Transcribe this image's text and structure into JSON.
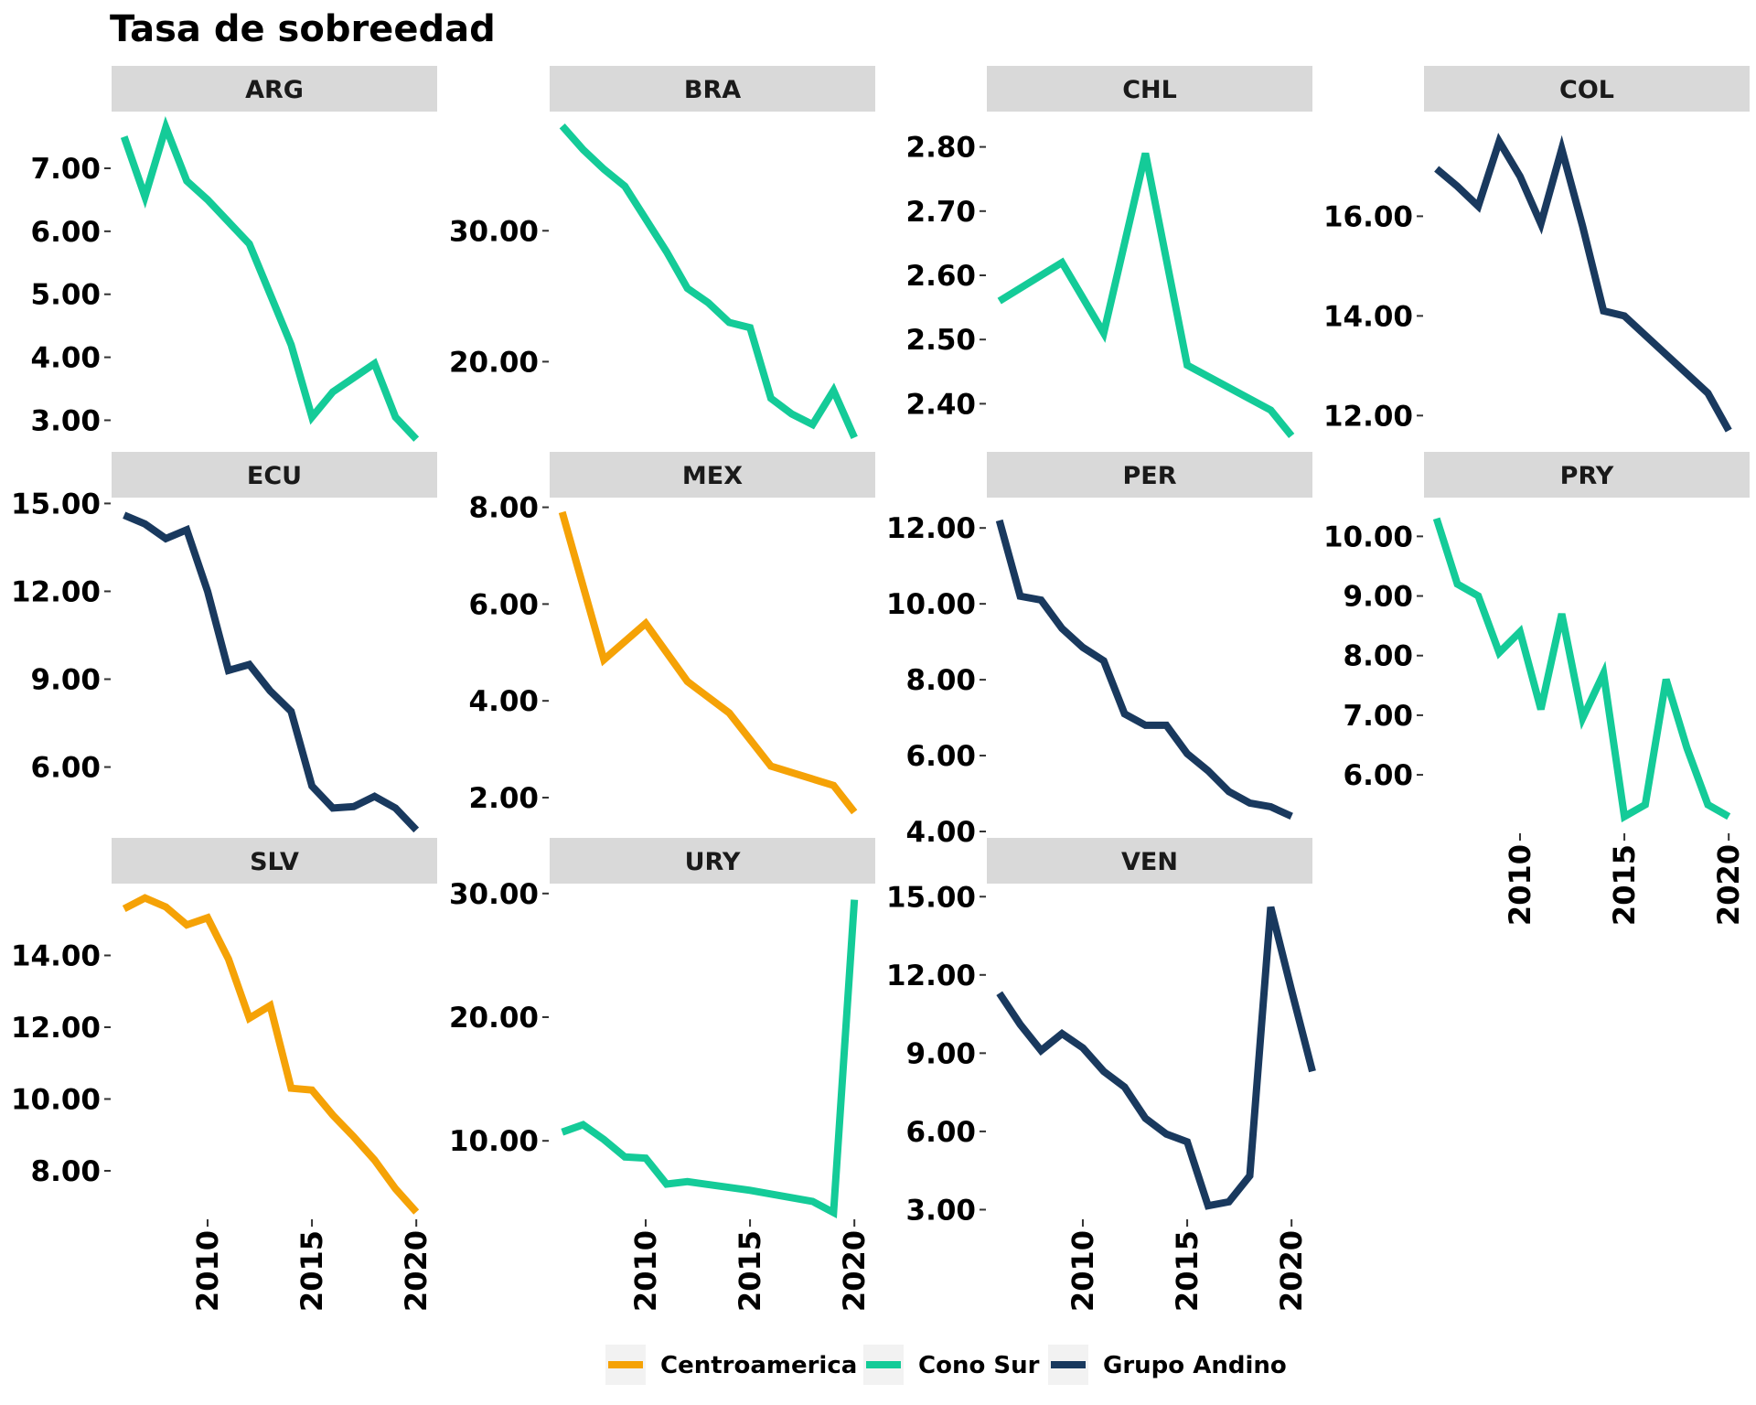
{
  "chart_data": {
    "type": "line",
    "title": "Tasa de sobreedad",
    "x": [
      2006,
      2007,
      2008,
      2009,
      2010,
      2011,
      2012,
      2013,
      2014,
      2015,
      2016,
      2017,
      2018,
      2019,
      2020,
      2021
    ],
    "xticks": [
      "2010",
      "2015",
      "2020"
    ],
    "legend": {
      "position": "bottom",
      "entries": [
        {
          "label": "Centroamerica",
          "color": "#F5A206"
        },
        {
          "label": "Cono Sur",
          "color": "#14CB98"
        },
        {
          "label": "Grupo Andino",
          "color": "#19395E"
        }
      ]
    },
    "panels": [
      {
        "label": "ARG",
        "group": "Cono Sur",
        "ylim": [
          2.6,
          7.9
        ],
        "yticks": [
          "7.00",
          "6.00",
          "5.00",
          "4.00",
          "3.00"
        ],
        "show_x_axis": false,
        "points": [
          [
            2006,
            7.5
          ],
          [
            2007,
            6.55
          ],
          [
            2008,
            7.65
          ],
          [
            2009,
            6.8
          ],
          [
            2010,
            6.5
          ],
          [
            2012,
            5.8
          ],
          [
            2014,
            4.2
          ],
          [
            2015,
            3.05
          ],
          [
            2016,
            3.45
          ],
          [
            2018,
            3.9
          ],
          [
            2019,
            3.05
          ],
          [
            2020,
            2.7
          ]
        ]
      },
      {
        "label": "BRA",
        "group": "Cono Sur",
        "ylim": [
          13.6,
          39.1
        ],
        "yticks": [
          "30.00",
          "20.00"
        ],
        "show_x_axis": false,
        "points": [
          [
            2006,
            38.0
          ],
          [
            2007,
            36.2
          ],
          [
            2008,
            34.7
          ],
          [
            2009,
            33.4
          ],
          [
            2010,
            30.9
          ],
          [
            2011,
            28.4
          ],
          [
            2012,
            25.6
          ],
          [
            2013,
            24.5
          ],
          [
            2014,
            23.0
          ],
          [
            2015,
            22.6
          ],
          [
            2016,
            17.2
          ],
          [
            2017,
            16.0
          ],
          [
            2018,
            15.2
          ],
          [
            2019,
            17.8
          ],
          [
            2020,
            14.2
          ]
        ]
      },
      {
        "label": "CHL",
        "group": "Cono Sur",
        "ylim": [
          2.335,
          2.855
        ],
        "yticks": [
          "2.80",
          "2.70",
          "2.60",
          "2.50",
          "2.40"
        ],
        "show_x_axis": false,
        "points": [
          [
            2006,
            2.56
          ],
          [
            2009,
            2.62
          ],
          [
            2011,
            2.51
          ],
          [
            2013,
            2.79
          ],
          [
            2015,
            2.46
          ],
          [
            2019,
            2.39
          ],
          [
            2020,
            2.35
          ]
        ]
      },
      {
        "label": "COL",
        "group": "Grupo Andino",
        "ylim": [
          11.4,
          18.1
        ],
        "yticks": [
          "16.00",
          "14.00",
          "12.00"
        ],
        "show_x_axis": false,
        "points": [
          [
            2006,
            16.95
          ],
          [
            2007,
            16.6
          ],
          [
            2008,
            16.2
          ],
          [
            2009,
            17.5
          ],
          [
            2010,
            16.8
          ],
          [
            2011,
            15.85
          ],
          [
            2012,
            17.35
          ],
          [
            2013,
            15.8
          ],
          [
            2014,
            14.1
          ],
          [
            2015,
            14.0
          ],
          [
            2019,
            12.45
          ],
          [
            2020,
            11.7
          ]
        ]
      },
      {
        "label": "ECU",
        "group": "Grupo Andino",
        "ylim": [
          3.8,
          15.2
        ],
        "yticks": [
          "15.00",
          "12.00",
          "9.00",
          "6.00"
        ],
        "show_x_axis": false,
        "points": [
          [
            2006,
            14.6
          ],
          [
            2007,
            14.3
          ],
          [
            2008,
            13.8
          ],
          [
            2009,
            14.1
          ],
          [
            2010,
            12.0
          ],
          [
            2011,
            9.3
          ],
          [
            2012,
            9.5
          ],
          [
            2013,
            8.6
          ],
          [
            2014,
            7.9
          ],
          [
            2015,
            5.35
          ],
          [
            2016,
            4.6
          ],
          [
            2017,
            4.65
          ],
          [
            2018,
            5.0
          ],
          [
            2019,
            4.6
          ],
          [
            2020,
            3.85
          ]
        ]
      },
      {
        "label": "MEX",
        "group": "Centroamerica",
        "ylim": [
          1.3,
          8.2
        ],
        "yticks": [
          "8.00",
          "6.00",
          "4.00",
          "2.00"
        ],
        "show_x_axis": false,
        "points": [
          [
            2006,
            7.9
          ],
          [
            2008,
            4.85
          ],
          [
            2010,
            5.6
          ],
          [
            2012,
            4.4
          ],
          [
            2014,
            3.75
          ],
          [
            2016,
            2.65
          ],
          [
            2019,
            2.25
          ],
          [
            2020,
            1.7
          ]
        ]
      },
      {
        "label": "PER",
        "group": "Grupo Andino",
        "ylim": [
          4.0,
          12.8
        ],
        "yticks": [
          "12.00",
          "10.00",
          "8.00",
          "6.00",
          "4.00"
        ],
        "show_x_axis": false,
        "points": [
          [
            2006,
            12.2
          ],
          [
            2007,
            10.2
          ],
          [
            2008,
            10.1
          ],
          [
            2009,
            9.35
          ],
          [
            2010,
            8.85
          ],
          [
            2011,
            8.5
          ],
          [
            2012,
            7.1
          ],
          [
            2013,
            6.8
          ],
          [
            2014,
            6.8
          ],
          [
            2015,
            6.05
          ],
          [
            2016,
            5.6
          ],
          [
            2017,
            5.05
          ],
          [
            2018,
            4.75
          ],
          [
            2019,
            4.65
          ],
          [
            2020,
            4.4
          ]
        ]
      },
      {
        "label": "PRY",
        "group": "Cono Sur",
        "ylim": [
          5.05,
          10.65
        ],
        "yticks": [
          "10.00",
          "9.00",
          "8.00",
          "7.00",
          "6.00"
        ],
        "show_x_axis": true,
        "points": [
          [
            2006,
            10.3
          ],
          [
            2007,
            9.2
          ],
          [
            2008,
            9.0
          ],
          [
            2009,
            8.05
          ],
          [
            2010,
            8.4
          ],
          [
            2011,
            7.1
          ],
          [
            2012,
            8.7
          ],
          [
            2013,
            6.95
          ],
          [
            2014,
            7.7
          ],
          [
            2015,
            5.3
          ],
          [
            2016,
            5.5
          ],
          [
            2017,
            7.6
          ],
          [
            2018,
            6.45
          ],
          [
            2019,
            5.5
          ],
          [
            2020,
            5.3
          ]
        ]
      },
      {
        "label": "SLV",
        "group": "Centroamerica",
        "ylim": [
          6.7,
          16.0
        ],
        "yticks": [
          "14.00",
          "12.00",
          "10.00",
          "8.00"
        ],
        "show_x_axis": true,
        "points": [
          [
            2006,
            15.3
          ],
          [
            2007,
            15.6
          ],
          [
            2008,
            15.35
          ],
          [
            2009,
            14.85
          ],
          [
            2010,
            15.05
          ],
          [
            2011,
            13.9
          ],
          [
            2012,
            12.25
          ],
          [
            2013,
            12.6
          ],
          [
            2014,
            10.3
          ],
          [
            2015,
            10.25
          ],
          [
            2016,
            9.55
          ],
          [
            2017,
            8.95
          ],
          [
            2018,
            8.3
          ],
          [
            2019,
            7.5
          ],
          [
            2020,
            6.85
          ]
        ]
      },
      {
        "label": "URY",
        "group": "Cono Sur",
        "ylim": [
          3.8,
          30.8
        ],
        "yticks": [
          "30.00",
          "20.00",
          "10.00"
        ],
        "show_x_axis": true,
        "points": [
          [
            2006,
            10.7
          ],
          [
            2007,
            11.3
          ],
          [
            2008,
            10.1
          ],
          [
            2009,
            8.7
          ],
          [
            2010,
            8.6
          ],
          [
            2011,
            6.5
          ],
          [
            2012,
            6.7
          ],
          [
            2015,
            6.0
          ],
          [
            2018,
            5.1
          ],
          [
            2019,
            4.2
          ],
          [
            2020,
            29.5
          ]
        ]
      },
      {
        "label": "VEN",
        "group": "Grupo Andino",
        "ylim": [
          2.7,
          15.5
        ],
        "yticks": [
          "15.00",
          "12.00",
          "9.00",
          "6.00",
          "3.00"
        ],
        "show_x_axis": true,
        "points": [
          [
            2006,
            11.3
          ],
          [
            2007,
            10.1
          ],
          [
            2008,
            9.1
          ],
          [
            2009,
            9.75
          ],
          [
            2010,
            9.2
          ],
          [
            2011,
            8.3
          ],
          [
            2012,
            7.7
          ],
          [
            2013,
            6.5
          ],
          [
            2014,
            5.9
          ],
          [
            2015,
            5.6
          ],
          [
            2016,
            3.15
          ],
          [
            2017,
            3.3
          ],
          [
            2018,
            4.3
          ],
          [
            2019,
            14.6
          ],
          [
            2020,
            11.4
          ],
          [
            2021,
            8.3
          ]
        ]
      }
    ]
  }
}
